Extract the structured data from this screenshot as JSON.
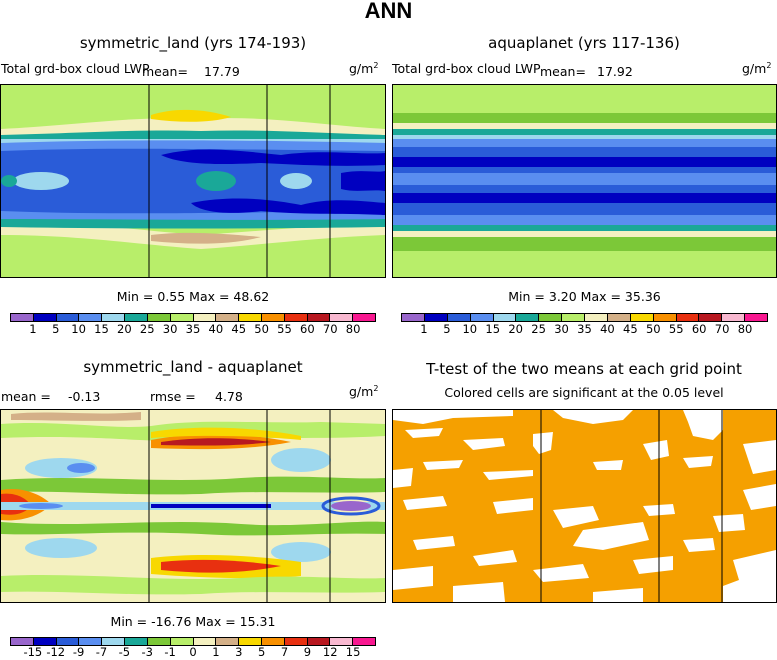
{
  "figure_title": "ANN",
  "chart_data": [
    {
      "type": "heatmap",
      "title": "symmetric_land (yrs 174-193)",
      "subtitle": "Total grd-box cloud LWP",
      "units": "g/m2",
      "mean_label": "mean=",
      "mean": "17.79",
      "stats_text": "Min =    0.55 Max =   48.62",
      "min": 0.55,
      "max": 48.62,
      "levels": [
        "1",
        "5",
        "10",
        "15",
        "20",
        "25",
        "30",
        "35",
        "40",
        "45",
        "50",
        "55",
        "60",
        "70",
        "80"
      ],
      "colors": [
        "#9966cc",
        "#0000c0",
        "#2a5cd8",
        "#5a8ef0",
        "#9ed8ee",
        "#1aa898",
        "#7cc838",
        "#b8ee6a",
        "#f4f0c0",
        "#d4b088",
        "#f8d800",
        "#f89000",
        "#e83010",
        "#b81820",
        "#f8b8d0",
        "#f81890"
      ]
    },
    {
      "type": "heatmap",
      "title": "aquaplanet (yrs 117-136)",
      "subtitle": "Total grd-box cloud LWP",
      "units": "g/m2",
      "mean_label": "mean=",
      "mean": "17.92",
      "stats_text": "Min =    3.20 Max =   35.36",
      "min": 3.2,
      "max": 35.36,
      "levels": [
        "1",
        "5",
        "10",
        "15",
        "20",
        "25",
        "30",
        "35",
        "40",
        "45",
        "50",
        "55",
        "60",
        "70",
        "80"
      ],
      "colors": [
        "#9966cc",
        "#0000c0",
        "#2a5cd8",
        "#5a8ef0",
        "#9ed8ee",
        "#1aa898",
        "#7cc838",
        "#b8ee6a",
        "#f4f0c0",
        "#d4b088",
        "#f8d800",
        "#f89000",
        "#e83010",
        "#b81820",
        "#f8b8d0",
        "#f81890"
      ]
    },
    {
      "type": "heatmap",
      "title": "symmetric_land - aquaplanet",
      "units": "g/m2",
      "mean_label": "mean =",
      "mean": "-0.13",
      "rmse_label": "rmse =",
      "rmse": "4.78",
      "stats_text": "Min = -16.76 Max =   15.31",
      "min": -16.76,
      "max": 15.31,
      "levels": [
        "-15",
        "-12",
        "-9",
        "-7",
        "-5",
        "-3",
        "-1",
        "0",
        "1",
        "3",
        "5",
        "7",
        "9",
        "12",
        "15"
      ],
      "colors": [
        "#9966cc",
        "#0000c0",
        "#2a5cd8",
        "#5a8ef0",
        "#9ed8ee",
        "#1aa898",
        "#7cc838",
        "#b8ee6a",
        "#f4f0c0",
        "#d4b088",
        "#f8d800",
        "#f89000",
        "#e83010",
        "#b81820",
        "#f8b8d0",
        "#f81890"
      ]
    },
    {
      "type": "heatmap",
      "title": "T-test of the two means at each grid point",
      "subtitle": "Colored cells are significant at the 0.05 level",
      "significant_color": "#f5a000"
    }
  ]
}
